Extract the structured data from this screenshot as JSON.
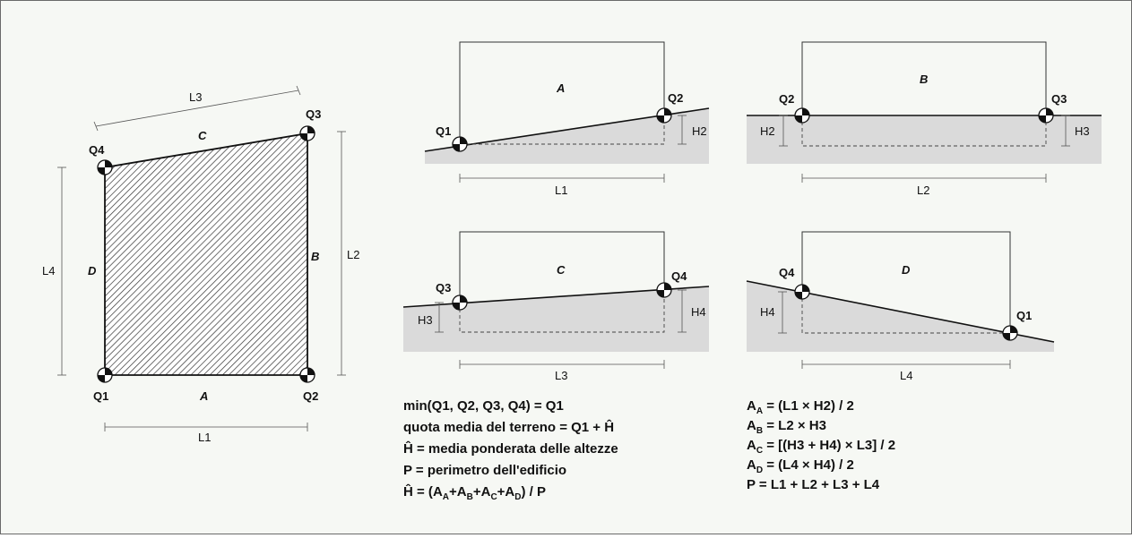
{
  "plan": {
    "corners": [
      "Q1",
      "Q2",
      "Q3",
      "Q4"
    ],
    "sides": [
      "A",
      "B",
      "C",
      "D"
    ],
    "lengths": [
      "L1",
      "L2",
      "L3",
      "L4"
    ]
  },
  "sections": {
    "A": {
      "face": "A",
      "left_point": "Q1",
      "right_point": "Q2",
      "height": "H2",
      "length": "L1"
    },
    "B": {
      "face": "B",
      "left_point": "Q2",
      "right_point": "Q3",
      "height_left": "H2",
      "height_right": "H3",
      "length": "L2"
    },
    "C": {
      "face": "C",
      "left_point": "Q3",
      "right_point": "Q4",
      "height_left": "H3",
      "height_right": "H4",
      "length": "L3"
    },
    "D": {
      "face": "D",
      "left_point": "Q4",
      "right_point": "Q1",
      "height": "H4",
      "length": "L4"
    }
  },
  "formulas_left": [
    "min(Q1, Q2, Q3, Q4) = Q1",
    "quota media del terreno = Q1 + Ĥ",
    "Ĥ = media ponderata delle altezze",
    "P = perimetro dell'edificio"
  ],
  "formula_h": {
    "prefix": "Ĥ = (",
    "a": "A",
    "ia": "A",
    "b": "+A",
    "ib": "B",
    "c": "+A",
    "ic": "C",
    "d": "+A",
    "id": "D",
    "suffix": ") / P"
  },
  "formulas_right": [
    {
      "name": "A",
      "sub": "A",
      "expr": " = (L1 × H2) / 2"
    },
    {
      "name": "A",
      "sub": "B",
      "expr": " = L2 × H3"
    },
    {
      "name": "A",
      "sub": "C",
      "expr": " = [(H3 + H4) × L3] / 2"
    },
    {
      "name": "A",
      "sub": "D",
      "expr": " = (L4 × H4) / 2"
    }
  ],
  "formula_p": "P = L1 + L2 + L3 + L4"
}
